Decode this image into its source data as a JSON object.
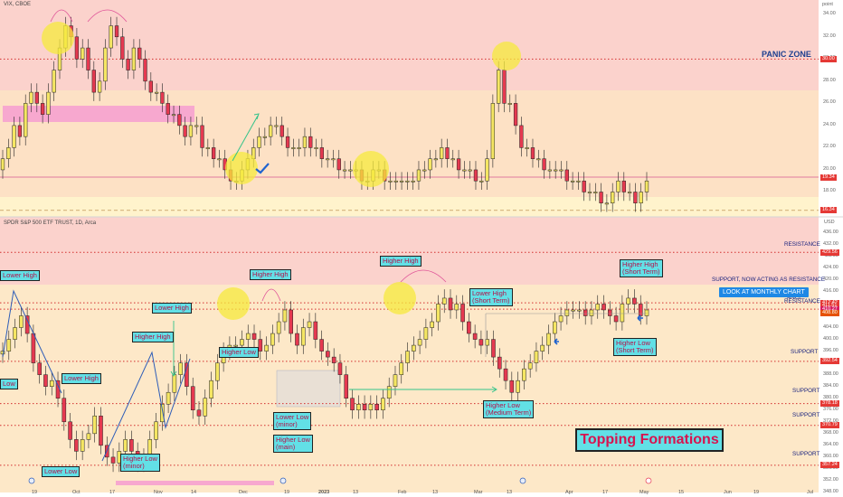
{
  "panels": [
    {
      "id": "vix",
      "header": "VIX, CBOE",
      "unit_label": "point",
      "y_ticks": [
        "34.00",
        "32.00",
        "30.00",
        "28.00",
        "26.00",
        "24.00",
        "22.00",
        "20.00",
        "18.00"
      ],
      "price_tags": [
        "30.00",
        "19.34",
        "16.34"
      ],
      "zone_labels": [
        "PANIC ZONE"
      ]
    },
    {
      "id": "spx",
      "header": "SPDR S&P 500 ETF TRUST, 1D, Arca",
      "unit_label": "USD",
      "y_ticks": [
        "436.00",
        "432.00",
        "428.00",
        "424.00",
        "420.00",
        "416.00",
        "412.00",
        "408.00",
        "404.00",
        "400.00",
        "396.00",
        "392.00",
        "388.00",
        "384.00",
        "380.00",
        "376.00",
        "372.00",
        "368.00",
        "364.00",
        "360.00",
        "356.00",
        "352.00",
        "348.00"
      ],
      "price_tags": [
        "429.56",
        "412.42",
        "411.51",
        "410.27",
        "408.80",
        "392.54",
        "378.18",
        "370.79",
        "357.24"
      ],
      "zone_labels": [
        "RESISTANCE",
        "SUPPORT, NOW ACTING AS RESISTANCE",
        "ANCE",
        "RESISTANCE",
        "SUPPORT",
        "SUPPORT",
        "SUPPORT",
        "SUPPORT"
      ]
    }
  ],
  "annotations": [
    "Lower High",
    "Low",
    "Lower High",
    "Lower Low",
    "Higher High",
    "Lower High",
    "Higher Low",
    "Higher Low\n(minor)",
    "Higher High",
    "Lower Low\n(minor)",
    "Higher Low\n(main)",
    "Higher High",
    "Lower High\n(Short Term)",
    "Higher Low\n(Medium Term)",
    "Higher High\n(Short Term)",
    "Higher Low\n(Short Term)"
  ],
  "info_box": "LOOK AT MONTHLY CHART",
  "title_box": "Topping Formations",
  "time_axis": [
    "19",
    "Oct",
    "17",
    "Nov",
    "14",
    "Dec",
    "19",
    "2023",
    "13",
    "Feb",
    "13",
    "Mar",
    "13",
    "Apr",
    "17",
    "May",
    "15",
    "Jun",
    "19",
    "Jul"
  ],
  "colors": {
    "up": "#f5e663",
    "down": "#e53950",
    "support_line": "#d32f2f",
    "vix_bg": "#fbd2cc",
    "spx_bg": "#fde8c8",
    "accent_teal": "#62e0e6"
  },
  "chart_data": [
    {
      "type": "candlestick",
      "title": "VIX, CBOE",
      "ylim": [
        16,
        35
      ],
      "levels": [
        {
          "value": 30.0,
          "style": "dotted",
          "label": "PANIC ZONE"
        },
        {
          "value": 19.34,
          "style": "solid"
        },
        {
          "value": 16.34,
          "style": "dashed"
        }
      ],
      "series": [
        {
          "values": [
            21,
            22,
            24,
            23,
            26,
            27,
            26,
            25,
            27,
            29,
            31,
            33,
            32,
            30,
            31,
            29,
            27,
            28,
            31,
            33,
            32,
            30,
            29,
            31,
            30,
            28,
            27,
            27,
            26,
            25,
            25,
            24,
            23,
            24,
            24,
            22,
            22,
            21,
            21,
            20,
            19,
            19,
            20,
            21,
            22,
            23,
            23,
            24,
            24,
            23,
            22,
            22,
            22,
            23,
            22,
            22,
            21,
            21,
            21,
            20,
            20,
            20,
            20,
            19,
            19,
            20,
            20,
            19,
            19,
            19,
            19,
            19,
            19,
            20,
            20,
            21,
            21,
            22,
            21,
            21,
            20,
            20,
            20,
            19,
            19,
            21,
            26,
            29,
            26,
            26,
            24,
            22,
            22,
            21,
            21,
            20,
            20,
            20,
            20,
            19,
            19,
            19,
            18,
            18,
            18,
            17,
            17,
            18,
            19,
            18,
            18,
            17,
            18,
            19
          ]
        }
      ]
    },
    {
      "type": "candlestick",
      "title": "SPDR S&P 500 ETF TRUST, 1D, Arca",
      "ylim": [
        348,
        437
      ],
      "levels": [
        {
          "value": 429.56,
          "label": "RESISTANCE"
        },
        {
          "value": 412.42,
          "label": "SUPPORT, NOW ACTING AS RESISTANCE"
        },
        {
          "value": 410.27,
          "label": "RESISTANCE"
        },
        {
          "value": 392.54,
          "label": "SUPPORT"
        },
        {
          "value": 378.18,
          "label": "SUPPORT"
        },
        {
          "value": 370.79,
          "label": "SUPPORT"
        },
        {
          "value": 357.24,
          "label": "SUPPORT"
        }
      ],
      "series": [
        {
          "values": [
            396,
            400,
            404,
            408,
            402,
            392,
            388,
            384,
            386,
            380,
            372,
            366,
            362,
            366,
            368,
            374,
            364,
            360,
            358,
            362,
            366,
            362,
            358,
            360,
            366,
            372,
            378,
            382,
            388,
            392,
            384,
            376,
            374,
            380,
            386,
            392,
            396,
            398,
            398,
            400,
            402,
            400,
            396,
            398,
            402,
            406,
            410,
            402,
            398,
            404,
            406,
            400,
            396,
            394,
            392,
            388,
            380,
            376,
            378,
            376,
            378,
            376,
            380,
            384,
            388,
            392,
            396,
            398,
            400,
            404,
            406,
            412,
            414,
            410,
            412,
            406,
            402,
            400,
            398,
            400,
            394,
            390,
            386,
            382,
            386,
            390,
            392,
            396,
            398,
            402,
            406,
            408,
            410,
            410,
            410,
            408,
            410,
            412,
            410,
            408,
            406,
            412,
            414,
            412,
            408,
            410
          ]
        }
      ]
    }
  ]
}
